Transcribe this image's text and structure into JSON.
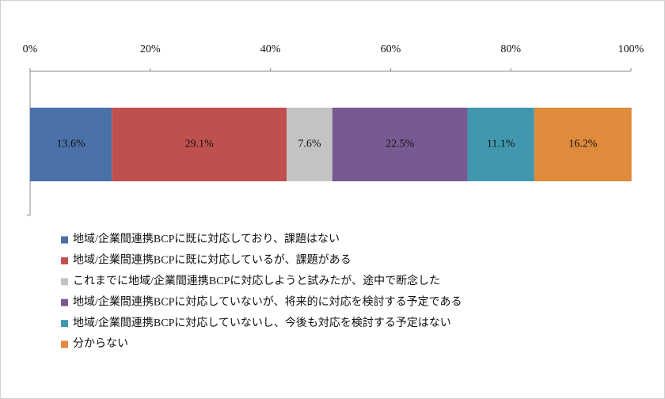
{
  "chart_data": {
    "type": "stacked-bar",
    "orientation": "horizontal",
    "categories": [
      null
    ],
    "xlim": [
      0,
      100
    ],
    "xticks": [
      {
        "value": 0,
        "label": "0%"
      },
      {
        "value": 20,
        "label": "20%"
      },
      {
        "value": 40,
        "label": "40%"
      },
      {
        "value": 60,
        "label": "60%"
      },
      {
        "value": 80,
        "label": "80%"
      },
      {
        "value": 100,
        "label": "100%"
      }
    ],
    "grid": false,
    "legend": "bottom",
    "series": [
      {
        "name": "地域/企業間連携BCPに既に対応しており、課題はない",
        "color": "#4a71a8",
        "values": [
          13.6
        ],
        "value_labels": [
          "13.6%"
        ]
      },
      {
        "name": "地域/企業間連携BCPに既に対応しているが、課題がある",
        "color": "#c0504d",
        "values": [
          29.1
        ],
        "value_labels": [
          "29.1%"
        ]
      },
      {
        "name": "これまでに地域/企業間連携BCPに対応しようと試みたが、途中で断念した",
        "color": "#c3c3c3",
        "values": [
          7.6
        ],
        "value_labels": [
          "7.6%"
        ]
      },
      {
        "name": "地域/企業間連携BCPに対応していないが、将来的に対応を検討する予定である",
        "color": "#775a91",
        "values": [
          22.5
        ],
        "value_labels": [
          "22.5%"
        ]
      },
      {
        "name": "地域/企業間連携BCPに対応していないし、今後も対応を検討する予定はない",
        "color": "#4198ae",
        "values": [
          11.1
        ],
        "value_labels": [
          "11.1%"
        ]
      },
      {
        "name": "分からない",
        "color": "#e08a3c",
        "values": [
          16.2
        ],
        "value_labels": [
          "16.2%"
        ]
      }
    ]
  }
}
